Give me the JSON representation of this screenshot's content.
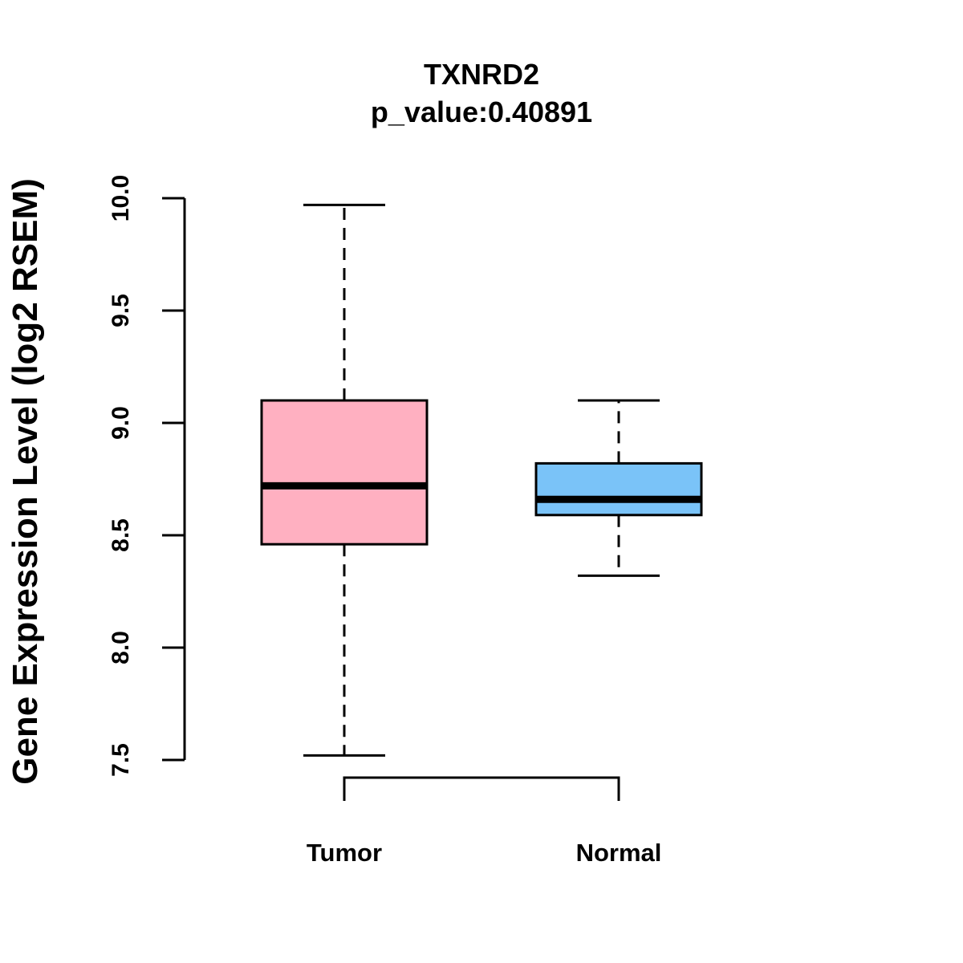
{
  "chart_data": {
    "type": "boxplot",
    "title": "TXNRD2",
    "subtitle": "p_value:0.40891",
    "xlabel": "",
    "ylabel": "Gene Expression Level (log2 RSEM)",
    "ylim": [
      7.5,
      10.0
    ],
    "yticks": [
      "7.5",
      "8.0",
      "8.5",
      "9.0",
      "9.5",
      "10.0"
    ],
    "grid": false,
    "categories": [
      "Tumor",
      "Normal"
    ],
    "boxes": [
      {
        "name": "Tumor",
        "whisker_low": 7.52,
        "q1": 8.46,
        "median": 8.72,
        "q3": 9.1,
        "whisker_high": 9.97,
        "color": "#FFB0C1"
      },
      {
        "name": "Normal",
        "whisker_low": 8.32,
        "q1": 8.59,
        "median": 8.66,
        "q3": 8.82,
        "whisker_high": 9.1,
        "color": "#7AC3F8"
      }
    ],
    "comparison_bracket": [
      "Tumor",
      "Normal"
    ]
  }
}
